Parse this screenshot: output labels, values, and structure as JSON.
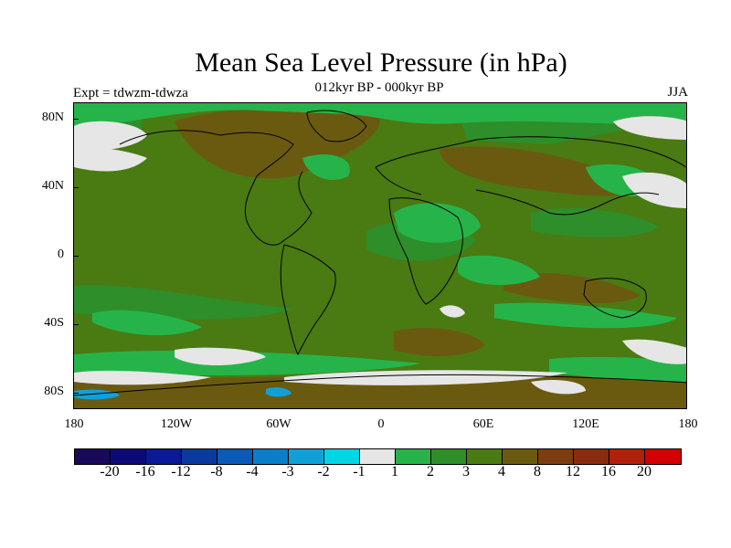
{
  "title": "Mean Sea Level Pressure (in hPa)",
  "subtitle": "012kyr BP - 000kyr BP",
  "left_label": "Expt = tdwzm-tdwza",
  "right_label": "JJA",
  "lat_labels": [
    "80N",
    "40N",
    "0",
    "40S",
    "80S"
  ],
  "lon_labels": [
    "180",
    "120W",
    "60W",
    "0",
    "60E",
    "120E",
    "180"
  ],
  "colorbar": {
    "colors": [
      "#1a0858",
      "#0b0a78",
      "#0a1a96",
      "#0a3aa0",
      "#0a5ab8",
      "#0a7ec8",
      "#10a0d8",
      "#00d6e4",
      "#e6e6e6",
      "#26b44a",
      "#2e8e2a",
      "#4a7a12",
      "#6a5a10",
      "#7a3e10",
      "#8a2a0e",
      "#b0200a",
      "#d40000"
    ],
    "labels": [
      "-20",
      "-16",
      "-12",
      "-8",
      "-4",
      "-3",
      "-2",
      "-1",
      "1",
      "2",
      "3",
      "4",
      "8",
      "12",
      "16",
      "20"
    ]
  },
  "chart_data": {
    "type": "heatmap",
    "title": "Mean Sea Level Pressure (in hPa)",
    "subtitle": "012kyr BP - 000kyr BP",
    "experiment": "Expt = tdwzm-tdwza",
    "season": "JJA",
    "lon_range": [
      -180,
      180
    ],
    "lat_range": [
      -90,
      90
    ],
    "contour_levels": [
      -20,
      -16,
      -12,
      -8,
      -4,
      -3,
      -2,
      -1,
      1,
      2,
      3,
      4,
      8,
      12,
      16,
      20
    ],
    "dominant_range": "3 to 4 hPa over most of the globe"
  }
}
